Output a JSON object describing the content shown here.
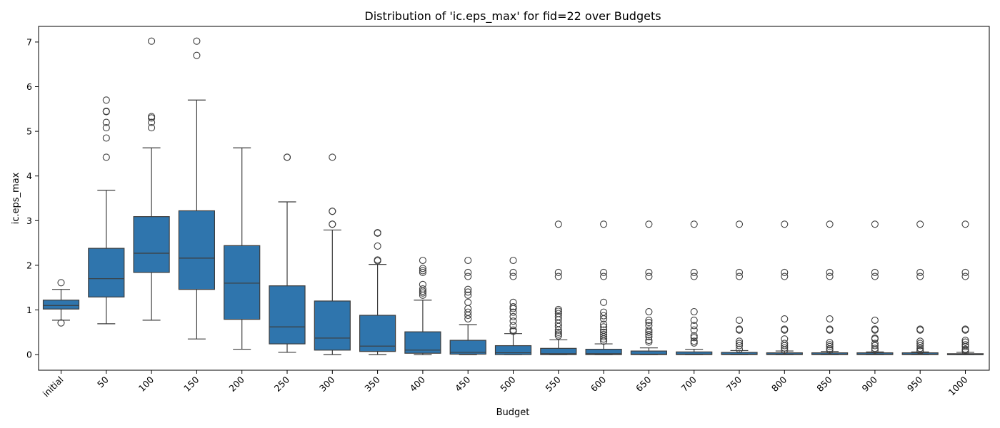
{
  "chart_data": {
    "type": "box",
    "title": "Distribution of 'ic.eps_max' for fid=22 over Budgets",
    "xlabel": "Budget",
    "ylabel": "ic.eps_max",
    "ylim": [
      -0.35,
      7.35
    ],
    "yticks": [
      0,
      1,
      2,
      3,
      4,
      5,
      6,
      7
    ],
    "grid": false,
    "legend": "none",
    "box_color": "#2f75ad",
    "line_color": "#3d3d3d",
    "categories": [
      "initial",
      "50",
      "100",
      "150",
      "200",
      "250",
      "300",
      "350",
      "400",
      "450",
      "500",
      "550",
      "600",
      "650",
      "700",
      "750",
      "800",
      "850",
      "900",
      "950",
      "1000"
    ],
    "boxes": [
      {
        "low": 0.77,
        "q1": 1.02,
        "median": 1.1,
        "q3": 1.22,
        "high": 1.46,
        "outliers": [
          1.61,
          0.71
        ]
      },
      {
        "low": 0.69,
        "q1": 1.29,
        "median": 1.7,
        "q3": 2.38,
        "high": 3.68,
        "outliers": [
          4.42,
          4.85,
          5.08,
          5.2,
          5.44,
          5.45,
          5.7
        ]
      },
      {
        "low": 0.77,
        "q1": 1.84,
        "median": 2.27,
        "q3": 3.09,
        "high": 4.63,
        "outliers": [
          5.08,
          5.2,
          5.3,
          5.33,
          7.02
        ]
      },
      {
        "low": 0.35,
        "q1": 1.46,
        "median": 2.16,
        "q3": 3.22,
        "high": 5.7,
        "outliers": [
          6.7,
          7.02
        ]
      },
      {
        "low": 0.12,
        "q1": 0.79,
        "median": 1.6,
        "q3": 2.44,
        "high": 4.63,
        "outliers": []
      },
      {
        "low": 0.05,
        "q1": 0.24,
        "median": 0.62,
        "q3": 1.54,
        "high": 3.42,
        "outliers": [
          4.42,
          4.42
        ]
      },
      {
        "low": 0.0,
        "q1": 0.1,
        "median": 0.37,
        "q3": 1.2,
        "high": 2.79,
        "outliers": [
          2.92,
          2.92,
          3.21,
          3.21,
          4.42
        ]
      },
      {
        "low": 0.0,
        "q1": 0.07,
        "median": 0.19,
        "q3": 0.88,
        "high": 2.02,
        "outliers": [
          2.1,
          2.12,
          2.43,
          2.72,
          2.73
        ]
      },
      {
        "low": 0.0,
        "q1": 0.03,
        "median": 0.1,
        "q3": 0.51,
        "high": 1.22,
        "outliers": [
          1.33,
          1.38,
          1.42,
          1.47,
          1.57,
          1.84,
          1.88,
          1.93,
          2.11
        ]
      },
      {
        "low": 0.0,
        "q1": 0.01,
        "median": 0.05,
        "q3": 0.32,
        "high": 0.67,
        "outliers": [
          0.8,
          0.88,
          0.95,
          1.03,
          1.17,
          1.33,
          1.4,
          1.46,
          1.75,
          1.84,
          2.11
        ]
      },
      {
        "low": 0.0,
        "q1": 0.0,
        "median": 0.04,
        "q3": 0.2,
        "high": 0.47,
        "outliers": [
          0.52,
          0.55,
          0.65,
          0.75,
          0.85,
          0.95,
          1.03,
          1.07,
          1.17,
          1.75,
          1.84,
          2.11
        ]
      },
      {
        "low": 0.0,
        "q1": 0.0,
        "median": 0.02,
        "q3": 0.14,
        "high": 0.33,
        "outliers": [
          0.42,
          0.46,
          0.5,
          0.55,
          0.63,
          0.7,
          0.78,
          0.85,
          0.92,
          0.97,
          1.01,
          1.75,
          1.84,
          2.92
        ]
      },
      {
        "low": 0.0,
        "q1": 0.0,
        "median": 0.02,
        "q3": 0.12,
        "high": 0.24,
        "outliers": [
          0.3,
          0.35,
          0.4,
          0.45,
          0.5,
          0.55,
          0.62,
          0.68,
          0.8,
          0.87,
          0.95,
          1.17,
          1.75,
          1.84,
          2.92
        ]
      },
      {
        "low": 0.0,
        "q1": 0.0,
        "median": 0.01,
        "q3": 0.08,
        "high": 0.15,
        "outliers": [
          0.28,
          0.32,
          0.4,
          0.45,
          0.5,
          0.55,
          0.65,
          0.72,
          0.77,
          0.96,
          1.75,
          1.84,
          2.92
        ]
      },
      {
        "low": 0.0,
        "q1": 0.0,
        "median": 0.01,
        "q3": 0.06,
        "high": 0.12,
        "outliers": [
          0.26,
          0.3,
          0.38,
          0.42,
          0.55,
          0.65,
          0.77,
          0.96,
          1.75,
          1.84,
          2.92
        ]
      },
      {
        "low": 0.0,
        "q1": 0.0,
        "median": 0.01,
        "q3": 0.05,
        "high": 0.09,
        "outliers": [
          0.12,
          0.2,
          0.25,
          0.3,
          0.55,
          0.57,
          0.77,
          1.75,
          1.84,
          2.92
        ]
      },
      {
        "low": 0.0,
        "q1": 0.0,
        "median": 0.01,
        "q3": 0.04,
        "high": 0.08,
        "outliers": [
          0.1,
          0.15,
          0.2,
          0.25,
          0.35,
          0.55,
          0.57,
          0.8,
          1.75,
          1.84,
          2.92
        ]
      },
      {
        "low": 0.0,
        "q1": 0.0,
        "median": 0.01,
        "q3": 0.04,
        "high": 0.07,
        "outliers": [
          0.1,
          0.13,
          0.18,
          0.22,
          0.27,
          0.55,
          0.57,
          0.8,
          1.75,
          1.84,
          2.92
        ]
      },
      {
        "low": 0.0,
        "q1": 0.0,
        "median": 0.01,
        "q3": 0.04,
        "high": 0.06,
        "outliers": [
          0.1,
          0.14,
          0.2,
          0.25,
          0.35,
          0.37,
          0.55,
          0.57,
          0.77,
          1.75,
          1.84,
          2.92
        ]
      },
      {
        "low": 0.0,
        "q1": 0.0,
        "median": 0.01,
        "q3": 0.04,
        "high": 0.06,
        "outliers": [
          0.08,
          0.1,
          0.14,
          0.2,
          0.25,
          0.3,
          0.55,
          0.57,
          1.75,
          1.84,
          2.92
        ]
      },
      {
        "low": 0.0,
        "q1": 0.0,
        "median": 0.0,
        "q3": 0.02,
        "high": 0.05,
        "outliers": [
          0.07,
          0.1,
          0.12,
          0.18,
          0.22,
          0.28,
          0.32,
          0.55,
          0.57,
          1.75,
          1.84,
          2.92
        ]
      }
    ]
  }
}
